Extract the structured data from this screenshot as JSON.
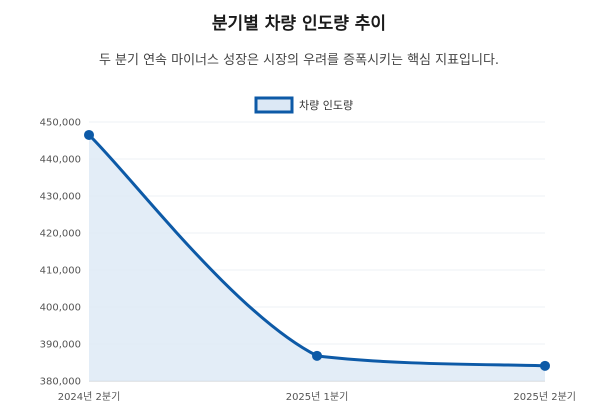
{
  "title": "분기별 차량 인도량 추이",
  "subtitle": "두 분기 연속 마이너스 성장은 시장의 우려를 증폭시키는 핵심 지표입니다.",
  "colors": {
    "line": "#0d5aa7",
    "fill": "#dce8f5",
    "grid": "#eef1f5",
    "axis": "#c8ccd2"
  },
  "chart_data": {
    "type": "area",
    "categories": [
      "2024년 2분기",
      "2025년 1분기",
      "2025년 2분기"
    ],
    "series": [
      {
        "name": "차량 인도량",
        "values": [
          446500,
          386800,
          384100
        ]
      }
    ],
    "ylim": [
      380000,
      450000
    ],
    "yticks": [
      380000,
      390000,
      400000,
      410000,
      420000,
      430000,
      440000,
      450000
    ],
    "ytick_labels": [
      "380,000",
      "390,000",
      "400,000",
      "410,000",
      "420,000",
      "430,000",
      "440,000",
      "450,000"
    ],
    "grid": true,
    "legend_position": "top-center"
  }
}
